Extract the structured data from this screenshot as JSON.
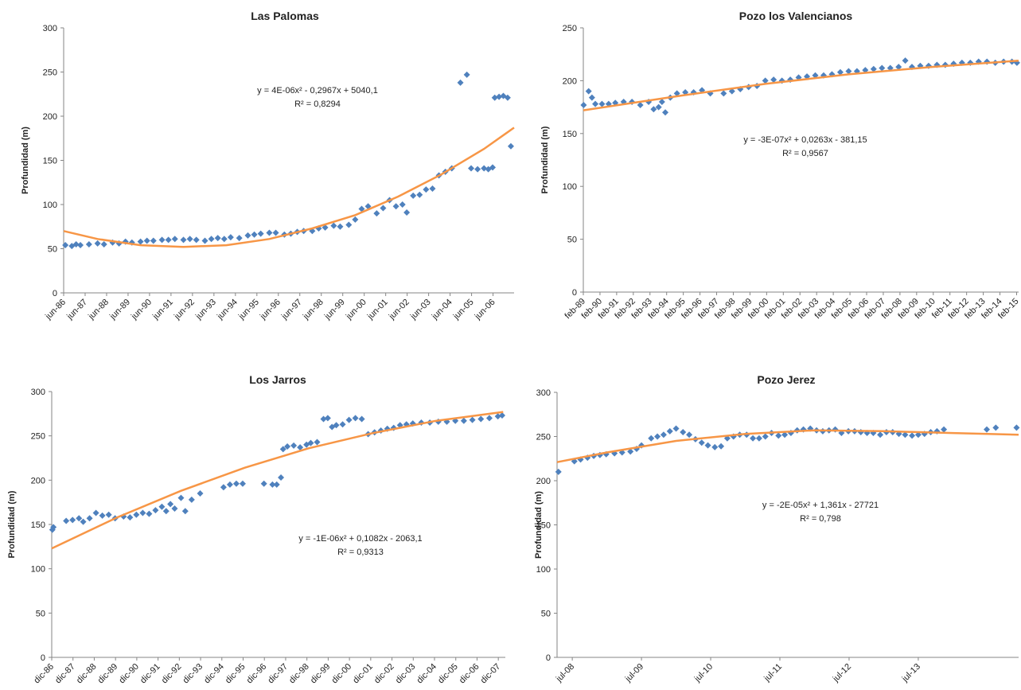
{
  "chart_data": [
    {
      "type": "scatter",
      "title": "Las Palomas",
      "ylabel": "Profundidad (m)",
      "annotations": [
        "y = 4E-06x² - 0,2967x + 5040,1",
        "R² = 0,8294"
      ],
      "xlim": [
        1986.42,
        2007.4
      ],
      "xticks": [
        {
          "value": 1986.42,
          "label": "jun-86"
        },
        {
          "value": 1987.42,
          "label": "jun-87"
        },
        {
          "value": 1988.42,
          "label": "jun-88"
        },
        {
          "value": 1989.42,
          "label": "jun-89"
        },
        {
          "value": 1990.42,
          "label": "jun-90"
        },
        {
          "value": 1991.42,
          "label": "jun-91"
        },
        {
          "value": 1992.42,
          "label": "jun-92"
        },
        {
          "value": 1993.42,
          "label": "jun-93"
        },
        {
          "value": 1994.42,
          "label": "jun-94"
        },
        {
          "value": 1995.42,
          "label": "jun-95"
        },
        {
          "value": 1996.42,
          "label": "jun-96"
        },
        {
          "value": 1997.42,
          "label": "jun-97"
        },
        {
          "value": 1998.42,
          "label": "jun-98"
        },
        {
          "value": 1999.42,
          "label": "jun-99"
        },
        {
          "value": 2000.42,
          "label": "jun-00"
        },
        {
          "value": 2001.42,
          "label": "jun-01"
        },
        {
          "value": 2002.42,
          "label": "jun-02"
        },
        {
          "value": 2003.42,
          "label": "jun-03"
        },
        {
          "value": 2004.42,
          "label": "jun-04"
        },
        {
          "value": 2005.42,
          "label": "jun-05"
        },
        {
          "value": 2006.42,
          "label": "jun-06"
        }
      ],
      "ylim": [
        0,
        300
      ],
      "yticks": [
        0,
        50,
        100,
        150,
        200,
        250,
        300
      ],
      "grid": false,
      "series": [
        {
          "style": "markers",
          "color": "#4f81bd",
          "x": [
            1986.5,
            1986.8,
            1987.0,
            1987.2,
            1987.6,
            1988.0,
            1988.3,
            1988.7,
            1989.0,
            1989.3,
            1989.6,
            1990.0,
            1990.3,
            1990.6,
            1991.0,
            1991.3,
            1991.6,
            1992.0,
            1992.3,
            1992.6,
            1993.0,
            1993.3,
            1993.6,
            1993.9,
            1994.2,
            1994.6,
            1995.0,
            1995.3,
            1995.6,
            1996.0,
            1996.3,
            1996.7,
            1997.0,
            1997.3,
            1997.6,
            1998.0,
            1998.3,
            1998.6,
            1999.0,
            1999.3,
            1999.7,
            2000.0,
            2000.3,
            2000.6,
            2001.0,
            2001.3,
            2001.6,
            2001.9,
            2002.2,
            2002.4,
            2002.7,
            2003.0,
            2003.3,
            2003.6,
            2003.9,
            2004.2,
            2004.5,
            2004.9,
            2005.2,
            2005.4,
            2005.7,
            2006.0,
            2006.2,
            2006.4,
            2006.5,
            2006.7,
            2006.9,
            2007.1,
            2007.25
          ],
          "values": [
            54,
            53,
            55,
            54,
            55,
            56,
            55,
            57,
            56,
            58,
            57,
            58,
            59,
            59,
            60,
            60,
            61,
            60,
            61,
            60,
            59,
            61,
            62,
            61,
            63,
            62,
            65,
            66,
            67,
            68,
            68,
            66,
            67,
            69,
            70,
            70,
            73,
            74,
            76,
            75,
            77,
            83,
            95,
            98,
            90,
            96,
            105,
            98,
            100,
            91,
            110,
            111,
            117,
            118,
            133,
            137,
            141,
            238,
            247,
            141,
            140,
            141,
            140,
            142,
            221,
            222,
            223,
            221,
            166
          ]
        },
        {
          "style": "line",
          "color": "#f79646",
          "x": [
            1986.42,
            1988,
            1990,
            1992,
            1994,
            1996,
            1998,
            2000,
            2002,
            2004,
            2006,
            2007.4
          ],
          "values": [
            70,
            61,
            54,
            52,
            54,
            61,
            73,
            88,
            109,
            134,
            163,
            187
          ]
        }
      ]
    },
    {
      "type": "scatter",
      "title": "Pozo los Valencianos",
      "ylabel": "Profundidad (m)",
      "annotations": [
        "y = -3E-07x² + 0,0263x - 381,15",
        "R² = 0,9567"
      ],
      "xlim": [
        1989.08,
        2015.2
      ],
      "xticks": [
        {
          "value": 1989.08,
          "label": "feb-89"
        },
        {
          "value": 1990.08,
          "label": "feb-90"
        },
        {
          "value": 1991.08,
          "label": "feb-91"
        },
        {
          "value": 1992.08,
          "label": "feb-92"
        },
        {
          "value": 1993.08,
          "label": "feb-93"
        },
        {
          "value": 1994.08,
          "label": "feb-94"
        },
        {
          "value": 1995.08,
          "label": "feb-95"
        },
        {
          "value": 1996.08,
          "label": "feb-96"
        },
        {
          "value": 1997.08,
          "label": "feb-97"
        },
        {
          "value": 1998.08,
          "label": "feb-98"
        },
        {
          "value": 1999.08,
          "label": "feb-99"
        },
        {
          "value": 2000.08,
          "label": "feb-00"
        },
        {
          "value": 2001.08,
          "label": "feb-01"
        },
        {
          "value": 2002.08,
          "label": "feb-02"
        },
        {
          "value": 2003.08,
          "label": "feb-03"
        },
        {
          "value": 2004.08,
          "label": "feb-04"
        },
        {
          "value": 2005.08,
          "label": "feb-05"
        },
        {
          "value": 2006.08,
          "label": "feb-06"
        },
        {
          "value": 2007.08,
          "label": "feb-07"
        },
        {
          "value": 2008.08,
          "label": "feb-08"
        },
        {
          "value": 2009.08,
          "label": "feb-09"
        },
        {
          "value": 2010.08,
          "label": "feb-10"
        },
        {
          "value": 2011.08,
          "label": "feb-11"
        },
        {
          "value": 2012.08,
          "label": "feb-12"
        },
        {
          "value": 2013.08,
          "label": "feb-13"
        },
        {
          "value": 2014.08,
          "label": "feb-14"
        },
        {
          "value": 2015.08,
          "label": "feb-15"
        }
      ],
      "ylim": [
        0,
        250
      ],
      "yticks": [
        0,
        50,
        100,
        150,
        200,
        250
      ],
      "grid": false,
      "series": [
        {
          "style": "markers",
          "color": "#4f81bd",
          "x": [
            1989.1,
            1989.4,
            1989.6,
            1989.8,
            1990.2,
            1990.6,
            1991.0,
            1991.5,
            1992.0,
            1992.5,
            1993.0,
            1993.3,
            1993.6,
            1993.8,
            1994.0,
            1994.3,
            1994.7,
            1995.2,
            1995.7,
            1996.2,
            1996.7,
            1997.5,
            1998.0,
            1998.5,
            1999.0,
            1999.5,
            2000.0,
            2000.5,
            2001.0,
            2001.5,
            2002.0,
            2002.5,
            2003.0,
            2003.5,
            2004.0,
            2004.5,
            2005.0,
            2005.5,
            2006.0,
            2006.5,
            2007.0,
            2007.5,
            2008.0,
            2008.4,
            2008.8,
            2009.3,
            2009.8,
            2010.3,
            2010.8,
            2011.3,
            2011.8,
            2012.3,
            2012.8,
            2013.3,
            2013.8,
            2014.3,
            2014.8,
            2015.1
          ],
          "values": [
            177,
            190,
            184,
            178,
            178,
            178,
            179,
            180,
            180,
            177,
            180,
            173,
            175,
            180,
            170,
            184,
            188,
            189,
            189,
            191,
            188,
            188,
            190,
            192,
            194,
            195,
            200,
            201,
            200,
            201,
            203,
            204,
            205,
            205,
            206,
            208,
            209,
            209,
            210,
            211,
            212,
            212,
            213,
            219,
            213,
            214,
            214,
            215,
            215,
            216,
            217,
            217,
            218,
            218,
            217,
            218,
            218,
            217
          ]
        },
        {
          "style": "line",
          "color": "#f79646",
          "x": [
            1989.08,
            1995,
            2000,
            2005,
            2010,
            2015.2
          ],
          "values": [
            172,
            186,
            197,
            206,
            213,
            219
          ]
        }
      ]
    },
    {
      "type": "scatter",
      "title": "Los Jarros",
      "ylabel": "Profundidad (m)",
      "annotations": [
        "y = -1E-06x² + 0,1082x - 2063,1",
        "R² = 0,9313"
      ],
      "xlim": [
        1986.92,
        2008.25
      ],
      "xticks": [
        {
          "value": 1986.92,
          "label": "dic-86"
        },
        {
          "value": 1987.92,
          "label": "dic-87"
        },
        {
          "value": 1988.92,
          "label": "dic-88"
        },
        {
          "value": 1989.92,
          "label": "dic-89"
        },
        {
          "value": 1990.92,
          "label": "dic-90"
        },
        {
          "value": 1991.92,
          "label": "dic-91"
        },
        {
          "value": 1992.92,
          "label": "dic-92"
        },
        {
          "value": 1993.92,
          "label": "dic-93"
        },
        {
          "value": 1994.92,
          "label": "dic-94"
        },
        {
          "value": 1995.92,
          "label": "dic-95"
        },
        {
          "value": 1996.92,
          "label": "dic-96"
        },
        {
          "value": 1997.92,
          "label": "dic-97"
        },
        {
          "value": 1998.92,
          "label": "dic-98"
        },
        {
          "value": 1999.92,
          "label": "dic-99"
        },
        {
          "value": 2000.92,
          "label": "dic-00"
        },
        {
          "value": 2001.92,
          "label": "dic-01"
        },
        {
          "value": 2002.92,
          "label": "dic-02"
        },
        {
          "value": 2003.92,
          "label": "dic-03"
        },
        {
          "value": 2004.92,
          "label": "dic-04"
        },
        {
          "value": 2005.92,
          "label": "dic-05"
        },
        {
          "value": 2006.92,
          "label": "dic-06"
        },
        {
          "value": 2007.92,
          "label": "dic-07"
        }
      ],
      "ylim": [
        0,
        300
      ],
      "yticks": [
        0,
        50,
        100,
        150,
        200,
        250,
        300
      ],
      "grid": false,
      "series": [
        {
          "style": "markers",
          "color": "#4f81bd",
          "x": [
            1986.95,
            1987.0,
            1987.6,
            1987.9,
            1988.2,
            1988.4,
            1988.7,
            1989.0,
            1989.3,
            1989.6,
            1989.9,
            1990.3,
            1990.6,
            1990.9,
            1991.2,
            1991.5,
            1991.8,
            1992.1,
            1992.3,
            1992.5,
            1992.7,
            1993.0,
            1993.2,
            1993.5,
            1993.9,
            1995.0,
            1995.3,
            1995.6,
            1995.9,
            1996.9,
            1997.3,
            1997.5,
            1997.7,
            1997.8,
            1998.0,
            1998.3,
            1998.6,
            1998.9,
            1999.1,
            1999.4,
            1999.7,
            1999.9,
            2000.1,
            2000.3,
            2000.6,
            2000.9,
            2001.2,
            2001.5,
            2001.8,
            2002.1,
            2002.4,
            2002.7,
            2003.0,
            2003.3,
            2003.6,
            2003.9,
            2004.3,
            2004.7,
            2005.1,
            2005.5,
            2005.9,
            2006.3,
            2006.7,
            2007.1,
            2007.5,
            2007.9,
            2008.1
          ],
          "values": [
            144,
            147,
            154,
            155,
            157,
            153,
            157,
            163,
            160,
            161,
            157,
            159,
            158,
            161,
            163,
            162,
            166,
            170,
            165,
            173,
            168,
            180,
            165,
            178,
            185,
            192,
            195,
            196,
            196,
            196,
            195,
            195,
            203,
            235,
            238,
            239,
            237,
            240,
            242,
            243,
            269,
            270,
            260,
            262,
            263,
            268,
            270,
            269,
            252,
            254,
            256,
            258,
            259,
            262,
            263,
            264,
            265,
            265,
            266,
            266,
            267,
            267,
            268,
            269,
            270,
            272,
            273
          ]
        },
        {
          "style": "line",
          "color": "#f79646",
          "x": [
            1986.92,
            1990,
            1993,
            1996,
            1999,
            2002,
            2005,
            2008.15
          ],
          "values": [
            123,
            158,
            188,
            214,
            236,
            253,
            267,
            277
          ]
        }
      ]
    },
    {
      "type": "scatter",
      "title": "Pozo Jerez",
      "ylabel": "Profundidad (m)",
      "annotations": [
        "y = -2E-05x² + 1,361x - 27721",
        "R² = 0,798"
      ],
      "xlim": [
        2008.28,
        2014.95
      ],
      "xticks": [
        {
          "value": 2008.5,
          "label": "jul-08"
        },
        {
          "value": 2009.5,
          "label": "jul-09"
        },
        {
          "value": 2010.5,
          "label": "jul-10"
        },
        {
          "value": 2011.5,
          "label": "jul-11"
        },
        {
          "value": 2012.5,
          "label": "jul-12"
        },
        {
          "value": 2013.5,
          "label": "jul-13"
        }
      ],
      "ylim": [
        0,
        300
      ],
      "yticks": [
        0,
        50,
        100,
        150,
        200,
        250,
        300
      ],
      "grid": false,
      "series": [
        {
          "style": "markers",
          "color": "#4f81bd",
          "x": [
            2008.3,
            2008.53,
            2008.62,
            2008.72,
            2008.81,
            2008.9,
            2008.99,
            2009.11,
            2009.22,
            2009.34,
            2009.43,
            2009.5,
            2009.64,
            2009.73,
            2009.82,
            2009.91,
            2010.0,
            2010.1,
            2010.19,
            2010.28,
            2010.37,
            2010.46,
            2010.56,
            2010.65,
            2010.74,
            2010.83,
            2010.92,
            2011.02,
            2011.11,
            2011.2,
            2011.29,
            2011.38,
            2011.48,
            2011.57,
            2011.66,
            2011.75,
            2011.84,
            2011.94,
            2012.03,
            2012.12,
            2012.21,
            2012.3,
            2012.39,
            2012.49,
            2012.58,
            2012.67,
            2012.76,
            2012.85,
            2012.95,
            2013.04,
            2013.13,
            2013.22,
            2013.31,
            2013.41,
            2013.5,
            2013.59,
            2013.68,
            2013.77,
            2013.87,
            2014.49,
            2014.62,
            2014.92
          ],
          "values": [
            210,
            222,
            224,
            226,
            228,
            229,
            230,
            231,
            232,
            233,
            236,
            240,
            248,
            250,
            252,
            256,
            259,
            255,
            252,
            247,
            243,
            240,
            238,
            239,
            248,
            250,
            252,
            252,
            248,
            248,
            250,
            254,
            251,
            252,
            254,
            257,
            258,
            259,
            257,
            256,
            257,
            258,
            254,
            256,
            256,
            255,
            254,
            254,
            252,
            255,
            255,
            253,
            252,
            251,
            252,
            253,
            255,
            256,
            258,
            258,
            260,
            260
          ]
        },
        {
          "style": "line",
          "color": "#f79646",
          "x": [
            2008.28,
            2009,
            2010,
            2011,
            2012,
            2013,
            2014,
            2014.95
          ],
          "values": [
            221,
            232,
            245,
            253,
            257,
            256,
            254,
            252
          ]
        }
      ]
    }
  ]
}
